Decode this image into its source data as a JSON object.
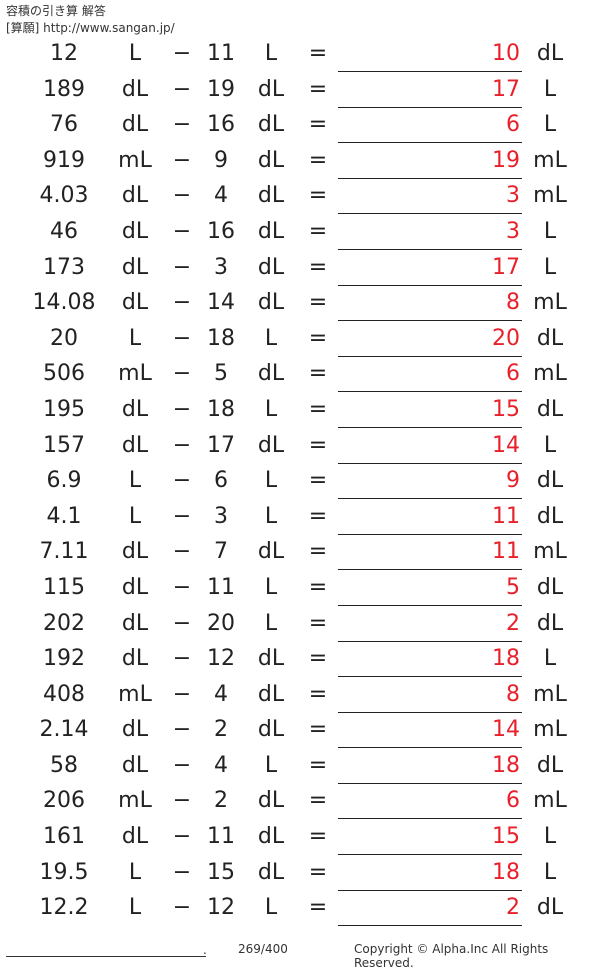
{
  "header": {
    "title": "容積の引き算 解答",
    "source": "[算願] http://www.sangan.jp/"
  },
  "problems": [
    {
      "a": "12",
      "ua": "L",
      "op": "−",
      "b": "11",
      "ub": "L",
      "eq": "=",
      "ans": "10",
      "uans": "dL"
    },
    {
      "a": "189",
      "ua": "dL",
      "op": "−",
      "b": "19",
      "ub": "dL",
      "eq": "=",
      "ans": "17",
      "uans": "L"
    },
    {
      "a": "76",
      "ua": "dL",
      "op": "−",
      "b": "16",
      "ub": "dL",
      "eq": "=",
      "ans": "6",
      "uans": "L"
    },
    {
      "a": "919",
      "ua": "mL",
      "op": "−",
      "b": "9",
      "ub": "dL",
      "eq": "=",
      "ans": "19",
      "uans": "mL"
    },
    {
      "a": "4.03",
      "ua": "dL",
      "op": "−",
      "b": "4",
      "ub": "dL",
      "eq": "=",
      "ans": "3",
      "uans": "mL"
    },
    {
      "a": "46",
      "ua": "dL",
      "op": "−",
      "b": "16",
      "ub": "dL",
      "eq": "=",
      "ans": "3",
      "uans": "L"
    },
    {
      "a": "173",
      "ua": "dL",
      "op": "−",
      "b": "3",
      "ub": "dL",
      "eq": "=",
      "ans": "17",
      "uans": "L"
    },
    {
      "a": "14.08",
      "ua": "dL",
      "op": "−",
      "b": "14",
      "ub": "dL",
      "eq": "=",
      "ans": "8",
      "uans": "mL"
    },
    {
      "a": "20",
      "ua": "L",
      "op": "−",
      "b": "18",
      "ub": "L",
      "eq": "=",
      "ans": "20",
      "uans": "dL"
    },
    {
      "a": "506",
      "ua": "mL",
      "op": "−",
      "b": "5",
      "ub": "dL",
      "eq": "=",
      "ans": "6",
      "uans": "mL"
    },
    {
      "a": "195",
      "ua": "dL",
      "op": "−",
      "b": "18",
      "ub": "L",
      "eq": "=",
      "ans": "15",
      "uans": "dL"
    },
    {
      "a": "157",
      "ua": "dL",
      "op": "−",
      "b": "17",
      "ub": "dL",
      "eq": "=",
      "ans": "14",
      "uans": "L"
    },
    {
      "a": "6.9",
      "ua": "L",
      "op": "−",
      "b": "6",
      "ub": "L",
      "eq": "=",
      "ans": "9",
      "uans": "dL"
    },
    {
      "a": "4.1",
      "ua": "L",
      "op": "−",
      "b": "3",
      "ub": "L",
      "eq": "=",
      "ans": "11",
      "uans": "dL"
    },
    {
      "a": "7.11",
      "ua": "dL",
      "op": "−",
      "b": "7",
      "ub": "dL",
      "eq": "=",
      "ans": "11",
      "uans": "mL"
    },
    {
      "a": "115",
      "ua": "dL",
      "op": "−",
      "b": "11",
      "ub": "L",
      "eq": "=",
      "ans": "5",
      "uans": "dL"
    },
    {
      "a": "202",
      "ua": "dL",
      "op": "−",
      "b": "20",
      "ub": "L",
      "eq": "=",
      "ans": "2",
      "uans": "dL"
    },
    {
      "a": "192",
      "ua": "dL",
      "op": "−",
      "b": "12",
      "ub": "dL",
      "eq": "=",
      "ans": "18",
      "uans": "L"
    },
    {
      "a": "408",
      "ua": "mL",
      "op": "−",
      "b": "4",
      "ub": "dL",
      "eq": "=",
      "ans": "8",
      "uans": "mL"
    },
    {
      "a": "2.14",
      "ua": "dL",
      "op": "−",
      "b": "2",
      "ub": "dL",
      "eq": "=",
      "ans": "14",
      "uans": "mL"
    },
    {
      "a": "58",
      "ua": "dL",
      "op": "−",
      "b": "4",
      "ub": "L",
      "eq": "=",
      "ans": "18",
      "uans": "dL"
    },
    {
      "a": "206",
      "ua": "mL",
      "op": "−",
      "b": "2",
      "ub": "dL",
      "eq": "=",
      "ans": "6",
      "uans": "mL"
    },
    {
      "a": "161",
      "ua": "dL",
      "op": "−",
      "b": "11",
      "ub": "dL",
      "eq": "=",
      "ans": "15",
      "uans": "L"
    },
    {
      "a": "19.5",
      "ua": "L",
      "op": "−",
      "b": "15",
      "ub": "dL",
      "eq": "=",
      "ans": "18",
      "uans": "L"
    },
    {
      "a": "12.2",
      "ua": "L",
      "op": "−",
      "b": "12",
      "ub": "L",
      "eq": "=",
      "ans": "2",
      "uans": "dL"
    }
  ],
  "footer": {
    "dot": ".",
    "page": "269/400",
    "copyright": "Copyright © Alpha.Inc All Rights Reserved."
  },
  "colors": {
    "answer": "#e8202a",
    "text": "#222222"
  }
}
